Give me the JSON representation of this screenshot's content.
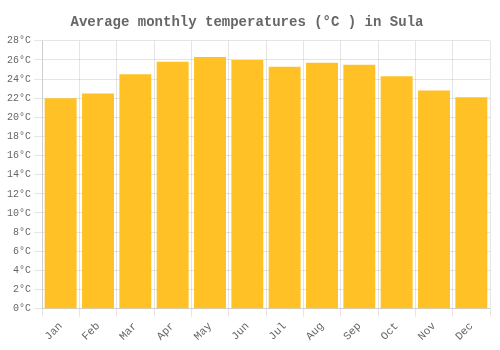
{
  "chart_data": {
    "type": "bar",
    "title": "Average monthly temperatures (°C ) in Sula",
    "categories": [
      "Jan",
      "Feb",
      "Mar",
      "Apr",
      "May",
      "Jun",
      "Jul",
      "Aug",
      "Sep",
      "Oct",
      "Nov",
      "Dec"
    ],
    "values": [
      22.0,
      22.5,
      24.5,
      25.8,
      26.3,
      26.0,
      25.3,
      25.7,
      25.5,
      24.3,
      22.8,
      22.1
    ],
    "color": "#FFC125",
    "ylim": [
      0,
      28
    ],
    "yticks": [
      {
        "value": 0,
        "label": "0°C"
      },
      {
        "value": 2,
        "label": "2°C"
      },
      {
        "value": 4,
        "label": "4°C"
      },
      {
        "value": 6,
        "label": "6°C"
      },
      {
        "value": 8,
        "label": "8°C"
      },
      {
        "value": 10,
        "label": "10°C"
      },
      {
        "value": 12,
        "label": "12°C"
      },
      {
        "value": 14,
        "label": "14°C"
      },
      {
        "value": 16,
        "label": "16°C"
      },
      {
        "value": 18,
        "label": "18°C"
      },
      {
        "value": 20,
        "label": "20°C"
      },
      {
        "value": 22,
        "label": "22°C"
      },
      {
        "value": 24,
        "label": "24°C"
      },
      {
        "value": 26,
        "label": "26°C"
      },
      {
        "value": 28,
        "label": "28°C"
      }
    ],
    "grid": true
  }
}
